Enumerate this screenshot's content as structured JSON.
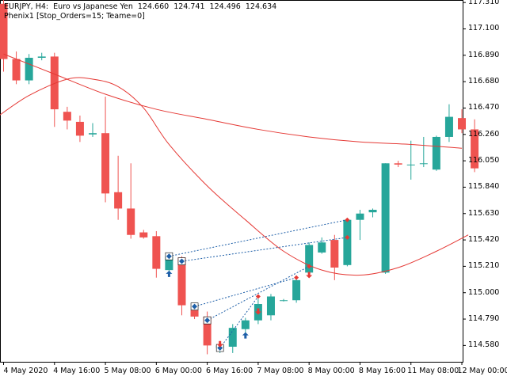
{
  "header": {
    "symbol_tf": "EURJPY, H4:",
    "description": "Euro vs Japanese Yen",
    "ohlc": [
      "124.660",
      "124.741",
      "124.496",
      "124.634"
    ],
    "indicator": "Phenix1 [Stop_Orders=15; Teame=0]"
  },
  "colors": {
    "bull": "#26a69a",
    "bear": "#ef5350",
    "ma": "#e53935",
    "arrow_buy": "#1e5fa8",
    "arrow_sell": "#e53935",
    "dotted_line": "#1e5fa8",
    "frame": "#000000",
    "background": "#ffffff"
  },
  "chart_data": {
    "type": "candlestick",
    "symbol": "EURJPY",
    "timeframe": "H4",
    "y_axis_labels": [
      "117.310",
      "117.100",
      "116.890",
      "116.680",
      "116.470",
      "116.260",
      "116.050",
      "115.840",
      "115.630",
      "115.420",
      "115.210",
      "115.000",
      "114.790",
      "114.580"
    ],
    "ylim": [
      114.45,
      117.33
    ],
    "x_axis_labels": [
      {
        "label": "4 May 2020",
        "bar": 0
      },
      {
        "label": "4 May 16:00",
        "bar": 4
      },
      {
        "label": "5 May 08:00",
        "bar": 8
      },
      {
        "label": "6 May 00:00",
        "bar": 12
      },
      {
        "label": "6 May 16:00",
        "bar": 16
      },
      {
        "label": "7 May 08:00",
        "bar": 20
      },
      {
        "label": "8 May 00:00",
        "bar": 24
      },
      {
        "label": "8 May 16:00",
        "bar": 28
      },
      {
        "label": "11 May 08:00",
        "bar": 32
      },
      {
        "label": "12 May 00:00",
        "bar": 36
      }
    ],
    "candles": [
      {
        "o": 117.3,
        "h": 117.33,
        "l": 116.76,
        "c": 116.86
      },
      {
        "o": 116.86,
        "h": 116.92,
        "l": 116.66,
        "c": 116.69
      },
      {
        "o": 116.69,
        "h": 116.9,
        "l": 116.66,
        "c": 116.87
      },
      {
        "o": 116.87,
        "h": 116.91,
        "l": 116.85,
        "c": 116.88
      },
      {
        "o": 116.88,
        "h": 116.91,
        "l": 116.32,
        "c": 116.46
      },
      {
        "o": 116.44,
        "h": 116.48,
        "l": 116.3,
        "c": 116.37
      },
      {
        "o": 116.36,
        "h": 116.41,
        "l": 116.2,
        "c": 116.25
      },
      {
        "o": 116.26,
        "h": 116.35,
        "l": 116.24,
        "c": 116.27
      },
      {
        "o": 116.27,
        "h": 116.56,
        "l": 115.72,
        "c": 115.79
      },
      {
        "o": 115.8,
        "h": 116.09,
        "l": 115.58,
        "c": 115.67
      },
      {
        "o": 115.67,
        "h": 116.03,
        "l": 115.43,
        "c": 115.46
      },
      {
        "o": 115.48,
        "h": 115.5,
        "l": 115.43,
        "c": 115.44
      },
      {
        "o": 115.45,
        "h": 115.49,
        "l": 115.12,
        "c": 115.19
      },
      {
        "o": 115.18,
        "h": 115.32,
        "l": 115.17,
        "c": 115.29
      },
      {
        "o": 115.28,
        "h": 115.29,
        "l": 114.82,
        "c": 114.9
      },
      {
        "o": 114.86,
        "h": 114.91,
        "l": 114.79,
        "c": 114.81
      },
      {
        "o": 114.81,
        "h": 114.85,
        "l": 114.51,
        "c": 114.58
      },
      {
        "o": 114.56,
        "h": 114.6,
        "l": 114.52,
        "c": 114.58
      },
      {
        "o": 114.57,
        "h": 114.75,
        "l": 114.52,
        "c": 114.72
      },
      {
        "o": 114.71,
        "h": 114.8,
        "l": 114.68,
        "c": 114.78
      },
      {
        "o": 114.78,
        "h": 114.95,
        "l": 114.75,
        "c": 114.91
      },
      {
        "o": 114.82,
        "h": 114.99,
        "l": 114.78,
        "c": 114.97
      },
      {
        "o": 114.94,
        "h": 114.95,
        "l": 114.93,
        "c": 114.94
      },
      {
        "o": 114.94,
        "h": 115.12,
        "l": 114.92,
        "c": 115.1
      },
      {
        "o": 115.16,
        "h": 115.4,
        "l": 115.15,
        "c": 115.38
      },
      {
        "o": 115.32,
        "h": 115.44,
        "l": 115.31,
        "c": 115.4
      },
      {
        "o": 115.42,
        "h": 115.46,
        "l": 115.1,
        "c": 115.2
      },
      {
        "o": 115.22,
        "h": 115.59,
        "l": 115.21,
        "c": 115.58
      },
      {
        "o": 115.58,
        "h": 115.66,
        "l": 115.42,
        "c": 115.63
      },
      {
        "o": 115.64,
        "h": 115.67,
        "l": 115.6,
        "c": 115.66
      },
      {
        "o": 115.16,
        "h": 116.03,
        "l": 115.15,
        "c": 116.03
      },
      {
        "o": 116.03,
        "h": 116.05,
        "l": 116.0,
        "c": 116.02
      },
      {
        "o": 116.02,
        "h": 116.21,
        "l": 115.9,
        "c": 116.02
      },
      {
        "o": 116.03,
        "h": 116.24,
        "l": 116.0,
        "c": 116.03
      },
      {
        "o": 115.98,
        "h": 116.25,
        "l": 115.97,
        "c": 116.24
      },
      {
        "o": 116.24,
        "h": 116.5,
        "l": 116.2,
        "c": 116.4
      },
      {
        "o": 116.39,
        "h": 116.46,
        "l": 116.27,
        "c": 116.3
      },
      {
        "o": 116.3,
        "h": 116.38,
        "l": 115.96,
        "c": 115.99
      }
    ],
    "ma_slow": [
      {
        "bar": 0,
        "v": 116.9
      },
      {
        "bar": 4,
        "v": 116.74
      },
      {
        "bar": 8,
        "v": 116.58
      },
      {
        "bar": 12,
        "v": 116.46
      },
      {
        "bar": 16,
        "v": 116.38
      },
      {
        "bar": 20,
        "v": 116.3
      },
      {
        "bar": 24,
        "v": 116.24
      },
      {
        "bar": 28,
        "v": 116.2
      },
      {
        "bar": 32,
        "v": 116.18
      },
      {
        "bar": 36,
        "v": 116.15
      }
    ],
    "ma_fast": [
      {
        "bar": -0.5,
        "v": 116.4
      },
      {
        "bar": 2,
        "v": 116.57
      },
      {
        "bar": 5,
        "v": 116.7
      },
      {
        "bar": 7,
        "v": 116.7
      },
      {
        "bar": 9,
        "v": 116.64
      },
      {
        "bar": 11,
        "v": 116.47
      },
      {
        "bar": 13,
        "v": 116.18
      },
      {
        "bar": 16,
        "v": 115.85
      },
      {
        "bar": 19,
        "v": 115.58
      },
      {
        "bar": 22,
        "v": 115.33
      },
      {
        "bar": 25,
        "v": 115.18
      },
      {
        "bar": 28,
        "v": 115.14
      },
      {
        "bar": 31,
        "v": 115.2
      },
      {
        "bar": 34,
        "v": 115.33
      },
      {
        "bar": 36.5,
        "v": 115.46
      }
    ],
    "orders": [
      {
        "from_bar": 13,
        "from_price": 115.29,
        "to_bar": 27,
        "to_price": 115.58,
        "type": "sell"
      },
      {
        "from_bar": 14,
        "from_price": 115.25,
        "to_bar": 27,
        "to_price": 115.44,
        "type": "sell"
      },
      {
        "from_bar": 15,
        "from_price": 114.89,
        "to_bar": 23,
        "to_price": 115.12,
        "type": "sell"
      },
      {
        "from_bar": 16,
        "from_price": 114.78,
        "to_bar": 24,
        "to_price": 115.21,
        "type": "sell"
      },
      {
        "from_bar": 17,
        "from_price": 114.56,
        "to_bar": 20,
        "to_price": 114.97,
        "type": "sell"
      }
    ],
    "buy_arrows": [
      {
        "bar": 13,
        "price": 115.15
      },
      {
        "bar": 19,
        "price": 114.66
      }
    ],
    "sell_arrows": [
      {
        "bar": 17,
        "price": 114.59
      },
      {
        "bar": 20,
        "price": 114.85
      },
      {
        "bar": 24,
        "price": 115.14
      }
    ]
  }
}
